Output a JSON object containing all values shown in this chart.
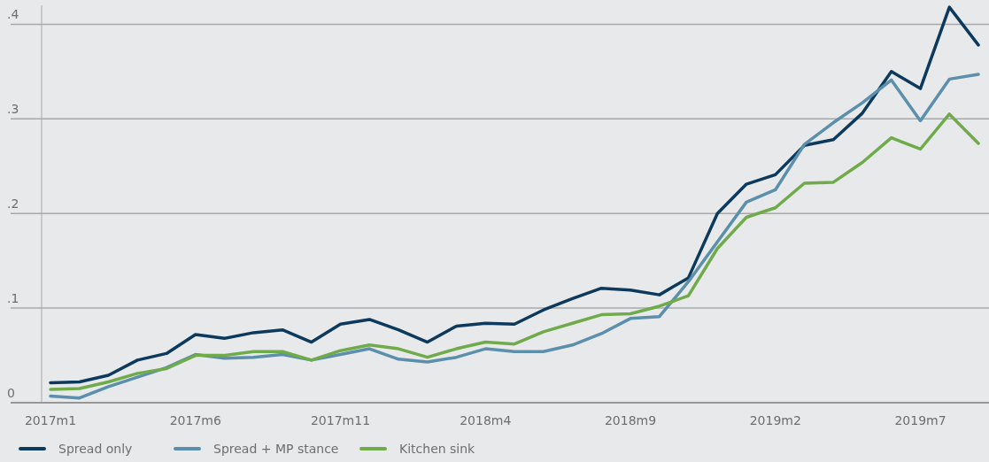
{
  "chart_data": {
    "type": "line",
    "categories": [
      "2017m1",
      null,
      null,
      null,
      null,
      "2017m6",
      null,
      null,
      null,
      null,
      "2017m11",
      null,
      null,
      null,
      null,
      "2018m4",
      null,
      null,
      null,
      null,
      "2018m9",
      null,
      null,
      null,
      null,
      "2019m2",
      null,
      null,
      null,
      null,
      "2019m7",
      null,
      null
    ],
    "ylim": [
      0,
      0.42
    ],
    "yticks": [
      {
        "value": 0,
        "label": "0"
      },
      {
        "value": 0.1,
        "label": ".1"
      },
      {
        "value": 0.2,
        "label": ".2"
      },
      {
        "value": 0.3,
        "label": ".3"
      },
      {
        "value": 0.4,
        "label": ".4"
      }
    ],
    "grid": "y",
    "legend": "bottom",
    "line_style": "solid",
    "marker": "none",
    "series": [
      {
        "name": "Spread only",
        "color": "#0d3a5c",
        "values": [
          0.021,
          0.022,
          0.029,
          0.045,
          0.052,
          0.072,
          0.068,
          0.074,
          0.077,
          0.064,
          0.083,
          0.088,
          0.077,
          0.064,
          0.081,
          0.084,
          0.083,
          0.098,
          0.11,
          0.121,
          0.119,
          0.114,
          0.132,
          0.2,
          0.231,
          0.241,
          0.272,
          0.278,
          0.306,
          0.35,
          0.332,
          0.418,
          0.378
        ]
      },
      {
        "name": "Spread + MP stance",
        "color": "#5b8fab",
        "values": [
          0.007,
          0.005,
          0.017,
          0.027,
          0.037,
          0.051,
          0.047,
          0.048,
          0.051,
          0.045,
          0.051,
          0.057,
          0.046,
          0.043,
          0.048,
          0.057,
          0.054,
          0.054,
          0.061,
          0.073,
          0.089,
          0.091,
          0.128,
          0.17,
          0.212,
          0.225,
          0.273,
          0.296,
          0.317,
          0.341,
          0.298,
          0.342,
          0.347
        ]
      },
      {
        "name": "Kitchen sink",
        "color": "#6fab4a",
        "values": [
          0.014,
          0.015,
          0.022,
          0.031,
          0.036,
          0.05,
          0.05,
          0.054,
          0.054,
          0.045,
          0.055,
          0.061,
          0.057,
          0.048,
          0.057,
          0.064,
          0.062,
          0.075,
          0.084,
          0.093,
          0.094,
          0.102,
          0.113,
          0.163,
          0.196,
          0.206,
          0.232,
          0.233,
          0.254,
          0.28,
          0.268,
          0.305,
          0.274
        ]
      }
    ]
  }
}
